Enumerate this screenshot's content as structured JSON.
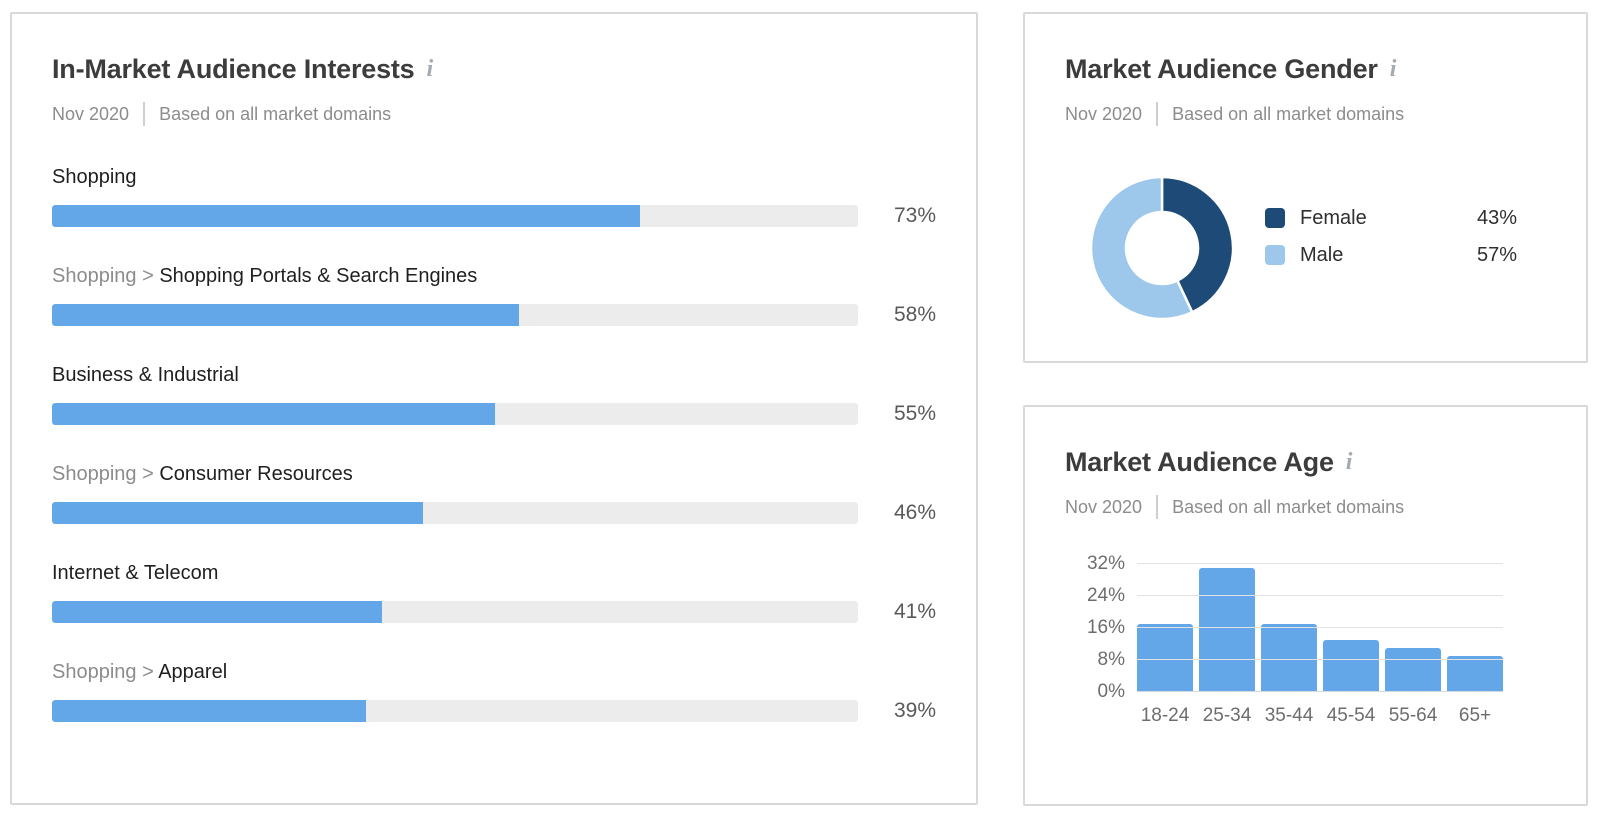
{
  "colors": {
    "bar_blue": "#64a7e9",
    "track_gray": "#ececec",
    "donut_female": "#1e4a78",
    "donut_male": "#9ec7ec",
    "grid_gray": "#e2e2e2"
  },
  "icons": {
    "info_glyph": "i"
  },
  "panels": {
    "interests": {
      "title": "In-Market Audience Interests",
      "date": "Nov 2020",
      "basis": "Based on all market domains",
      "separator": ">"
    },
    "gender": {
      "title": "Market Audience Gender",
      "date": "Nov 2020",
      "basis": "Based on all market domains"
    },
    "age": {
      "title": "Market Audience Age",
      "date": "Nov 2020",
      "basis": "Based on all market domains"
    }
  },
  "chart_data": [
    {
      "type": "bar",
      "orientation": "horizontal",
      "title": "In-Market Audience Interests",
      "unit": "%",
      "xlim": [
        0,
        100
      ],
      "color": "#64a7e9",
      "rows": [
        {
          "parent": null,
          "category": "Shopping",
          "value": 73
        },
        {
          "parent": "Shopping",
          "category": "Shopping Portals & Search Engines",
          "value": 58
        },
        {
          "parent": null,
          "category": "Business & Industrial",
          "value": 55
        },
        {
          "parent": "Shopping",
          "category": "Consumer Resources",
          "value": 46
        },
        {
          "parent": null,
          "category": "Internet & Telecom",
          "value": 41
        },
        {
          "parent": "Shopping",
          "category": "Apparel",
          "value": 39
        }
      ]
    },
    {
      "type": "pie",
      "subtype": "donut",
      "title": "Market Audience Gender",
      "unit": "%",
      "legend_position": "right",
      "start_angle": "top",
      "direction": "clockwise",
      "slices": [
        {
          "label": "Female",
          "value": 43,
          "color": "#1e4a78"
        },
        {
          "label": "Male",
          "value": 57,
          "color": "#9ec7ec"
        }
      ]
    },
    {
      "type": "bar",
      "title": "Market Audience Age",
      "unit": "%",
      "categories": [
        "18-24",
        "25-34",
        "35-44",
        "45-54",
        "55-64",
        "65+"
      ],
      "values": [
        17,
        31,
        17,
        13,
        11,
        9
      ],
      "yticks": [
        0,
        8,
        16,
        24,
        32
      ],
      "ylim": [
        0,
        34
      ],
      "grid": true,
      "color": "#64a7e9"
    }
  ]
}
